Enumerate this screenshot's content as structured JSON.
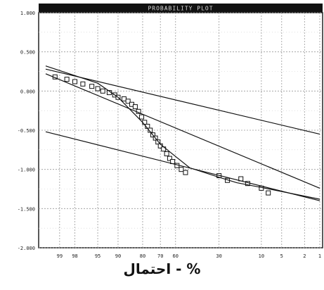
{
  "chart_data": {
    "type": "scatter",
    "title": "PROBABILITY PLOT",
    "xlabel": "% - احتمال",
    "ylabel": "",
    "x_ticks": [
      "99",
      "98",
      "95",
      "90",
      "80",
      "70",
      "60",
      "30",
      "10",
      "5",
      "2",
      "1"
    ],
    "y_ticks": [
      "1.000",
      "0.500",
      "0.000",
      "-0.500",
      "-1.000",
      "-1.500",
      "-2.000"
    ],
    "ylim": [
      -2.0,
      1.0
    ],
    "grid": true,
    "series": [
      {
        "type": "points",
        "x": [
          99.2,
          98.6,
          98.0,
          97.2,
          96.0,
          95.0,
          94.0,
          92.5,
          91.0,
          90.0,
          88.0,
          86.5,
          85.0,
          83.5,
          82.0,
          80.5,
          79.0,
          77.5,
          76.0,
          74.5,
          73.0,
          71.5,
          70.0,
          68.0,
          66.0,
          64.0,
          62.0,
          59.0,
          56.0,
          53.0,
          30.0,
          25.0,
          18.0,
          15.0,
          10.0,
          8.0
        ],
        "y": [
          0.18,
          0.15,
          0.12,
          0.09,
          0.06,
          0.03,
          0.0,
          -0.02,
          -0.05,
          -0.08,
          -0.1,
          -0.13,
          -0.17,
          -0.2,
          -0.26,
          -0.33,
          -0.4,
          -0.45,
          -0.5,
          -0.56,
          -0.6,
          -0.65,
          -0.7,
          -0.74,
          -0.8,
          -0.86,
          -0.9,
          -0.95,
          -1.0,
          -1.04,
          -1.08,
          -1.14,
          -1.12,
          -1.18,
          -1.24,
          -1.3
        ]
      },
      {
        "type": "line",
        "x": [
          99.5,
          1.0
        ],
        "y": [
          0.28,
          -0.55
        ]
      },
      {
        "type": "line",
        "x": [
          99.5,
          1.0
        ],
        "y": [
          0.22,
          -1.24
        ]
      },
      {
        "type": "line",
        "x": [
          99.5,
          1.0
        ],
        "y": [
          -0.52,
          -1.4
        ]
      },
      {
        "type": "curve",
        "x": [
          99.5,
          95.0,
          90.0,
          80.0,
          70.0,
          50.0,
          30.0,
          20.0,
          10.0,
          1.0
        ],
        "y": [
          0.32,
          0.1,
          -0.08,
          -0.4,
          -0.68,
          -0.98,
          -1.1,
          -1.17,
          -1.23,
          -1.38
        ]
      }
    ]
  }
}
